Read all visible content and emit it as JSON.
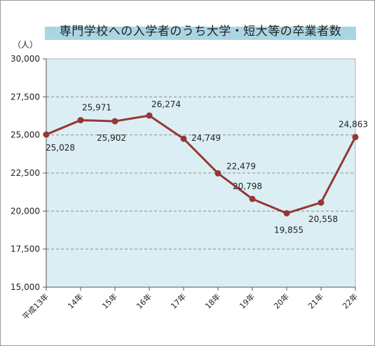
{
  "chart_data": {
    "type": "line",
    "title": "専門学校への入学者のうち大学・短大等の卒業者数",
    "unit": "（人）",
    "categories": [
      "平成13年",
      "14年",
      "15年",
      "16年",
      "17年",
      "18年",
      "19年",
      "20年",
      "21年",
      "22年"
    ],
    "series": [
      {
        "values": [
          25028,
          25971,
          25902,
          26274,
          24749,
          22479,
          20798,
          19855,
          20558,
          24863
        ],
        "labels": [
          "25,028",
          "25,971",
          "25,902",
          "26,274",
          "24,749",
          "22,479",
          "20,798",
          "19,855",
          "20,558",
          "24,863"
        ]
      }
    ],
    "ylim": [
      15000,
      30000
    ],
    "yticks": [
      15000,
      17500,
      20000,
      22500,
      25000,
      27500,
      30000
    ],
    "ytick_labels": [
      "15,000",
      "17,500",
      "20,000",
      "22,500",
      "25,000",
      "27,500",
      "30,000"
    ],
    "grid": true,
    "colors": {
      "plot_background": "#dbeef3",
      "line": "#953735",
      "title_band": "#a9d6e2",
      "gridline": "#8c8c8c"
    }
  }
}
